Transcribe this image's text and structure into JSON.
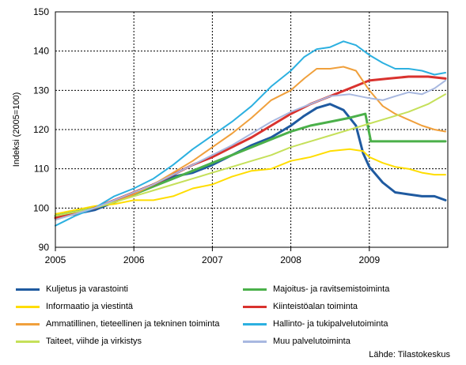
{
  "chart_data": {
    "type": "line",
    "title": "",
    "xlabel": "",
    "ylabel": "Indeksi (2005=100)",
    "xlim": [
      2005,
      2010
    ],
    "ylim": [
      90,
      150
    ],
    "x_ticks": [
      "2005",
      "2006",
      "2007",
      "2008",
      "2009"
    ],
    "y_ticks": [
      "90",
      "100",
      "110",
      "120",
      "130",
      "140",
      "150"
    ],
    "grid": true,
    "legend_position": "bottom",
    "source": "Lähde: Tilastokeskus",
    "series": [
      {
        "name": "Kuljetus ja varastointi",
        "color": "#1f5aa0",
        "points": [
          [
            2005.0,
            97.5
          ],
          [
            2005.25,
            98.5
          ],
          [
            2005.5,
            99.5
          ],
          [
            2005.75,
            101.5
          ],
          [
            2006.0,
            104.0
          ],
          [
            2006.25,
            106.0
          ],
          [
            2006.5,
            108.0
          ],
          [
            2006.75,
            109.0
          ],
          [
            2007.0,
            111.0
          ],
          [
            2007.25,
            113.5
          ],
          [
            2007.5,
            116.0
          ],
          [
            2007.75,
            118.0
          ],
          [
            2008.0,
            121.0
          ],
          [
            2008.17,
            123.5
          ],
          [
            2008.33,
            125.5
          ],
          [
            2008.5,
            126.5
          ],
          [
            2008.67,
            125.0
          ],
          [
            2008.83,
            121.0
          ],
          [
            2008.92,
            114.0
          ],
          [
            2009.0,
            110.5
          ],
          [
            2009.17,
            106.5
          ],
          [
            2009.33,
            104.0
          ],
          [
            2009.5,
            103.5
          ],
          [
            2009.67,
            103.0
          ],
          [
            2009.83,
            103.0
          ],
          [
            2009.97,
            102.0
          ]
        ]
      },
      {
        "name": "Majoitus- ja ravitsemistoiminta",
        "color": "#4bb04a",
        "points": [
          [
            2005.0,
            98.0
          ],
          [
            2005.25,
            99.0
          ],
          [
            2005.5,
            100.0
          ],
          [
            2005.75,
            101.5
          ],
          [
            2006.0,
            103.5
          ],
          [
            2006.25,
            105.5
          ],
          [
            2006.5,
            107.5
          ],
          [
            2006.75,
            109.5
          ],
          [
            2007.0,
            111.5
          ],
          [
            2007.25,
            113.5
          ],
          [
            2007.5,
            115.5
          ],
          [
            2007.75,
            117.5
          ],
          [
            2008.0,
            119.5
          ],
          [
            2008.25,
            121.0
          ],
          [
            2008.5,
            122.0
          ],
          [
            2008.75,
            123.0
          ],
          [
            2008.95,
            124.0
          ],
          [
            2009.02,
            117.0
          ],
          [
            2009.25,
            117.0
          ],
          [
            2009.5,
            117.0
          ],
          [
            2009.75,
            117.0
          ],
          [
            2009.97,
            117.0
          ]
        ]
      },
      {
        "name": "Informaatio ja viestintä",
        "color": "#ffdd00",
        "points": [
          [
            2005.0,
            98.5
          ],
          [
            2005.25,
            99.5
          ],
          [
            2005.5,
            100.5
          ],
          [
            2005.75,
            101.0
          ],
          [
            2006.0,
            102.0
          ],
          [
            2006.25,
            102.0
          ],
          [
            2006.5,
            103.0
          ],
          [
            2006.75,
            105.0
          ],
          [
            2007.0,
            106.0
          ],
          [
            2007.25,
            108.0
          ],
          [
            2007.5,
            109.5
          ],
          [
            2007.75,
            110.0
          ],
          [
            2008.0,
            112.0
          ],
          [
            2008.25,
            113.0
          ],
          [
            2008.5,
            114.5
          ],
          [
            2008.75,
            115.0
          ],
          [
            2008.92,
            114.5
          ],
          [
            2009.0,
            113.0
          ],
          [
            2009.17,
            111.5
          ],
          [
            2009.33,
            110.5
          ],
          [
            2009.5,
            110.0
          ],
          [
            2009.67,
            109.0
          ],
          [
            2009.83,
            108.5
          ],
          [
            2009.97,
            108.5
          ]
        ]
      },
      {
        "name": "Kiinteistöalan toiminta",
        "color": "#d9322e",
        "points": [
          [
            2005.0,
            97.5
          ],
          [
            2005.25,
            98.5
          ],
          [
            2005.5,
            100.0
          ],
          [
            2005.75,
            102.0
          ],
          [
            2006.0,
            104.0
          ],
          [
            2006.25,
            106.0
          ],
          [
            2006.5,
            108.5
          ],
          [
            2006.75,
            111.0
          ],
          [
            2007.0,
            113.0
          ],
          [
            2007.25,
            115.5
          ],
          [
            2007.5,
            118.0
          ],
          [
            2007.75,
            121.0
          ],
          [
            2008.0,
            124.0
          ],
          [
            2008.25,
            126.5
          ],
          [
            2008.5,
            128.5
          ],
          [
            2008.75,
            130.5
          ],
          [
            2009.0,
            132.5
          ],
          [
            2009.25,
            133.0
          ],
          [
            2009.5,
            133.5
          ],
          [
            2009.75,
            133.5
          ],
          [
            2009.97,
            133.0
          ]
        ]
      },
      {
        "name": "Ammatillinen, tieteellinen ja tekninen toiminta",
        "color": "#f0a03c",
        "points": [
          [
            2005.0,
            97.0
          ],
          [
            2005.25,
            98.5
          ],
          [
            2005.5,
            100.0
          ],
          [
            2005.75,
            101.5
          ],
          [
            2006.0,
            103.5
          ],
          [
            2006.25,
            106.0
          ],
          [
            2006.5,
            109.0
          ],
          [
            2006.75,
            112.0
          ],
          [
            2007.0,
            115.5
          ],
          [
            2007.25,
            119.0
          ],
          [
            2007.5,
            123.0
          ],
          [
            2007.75,
            127.5
          ],
          [
            2008.0,
            130.0
          ],
          [
            2008.17,
            133.0
          ],
          [
            2008.33,
            135.5
          ],
          [
            2008.5,
            135.5
          ],
          [
            2008.67,
            136.0
          ],
          [
            2008.83,
            135.0
          ],
          [
            2009.0,
            130.0
          ],
          [
            2009.17,
            126.0
          ],
          [
            2009.33,
            124.0
          ],
          [
            2009.5,
            122.5
          ],
          [
            2009.67,
            121.0
          ],
          [
            2009.83,
            120.0
          ],
          [
            2009.97,
            119.5
          ]
        ]
      },
      {
        "name": "Hallinto- ja tukipalvelutoiminta",
        "color": "#2cb0e0",
        "points": [
          [
            2005.0,
            95.5
          ],
          [
            2005.25,
            98.0
          ],
          [
            2005.5,
            100.0
          ],
          [
            2005.75,
            103.0
          ],
          [
            2006.0,
            105.0
          ],
          [
            2006.25,
            107.5
          ],
          [
            2006.5,
            111.0
          ],
          [
            2006.75,
            115.0
          ],
          [
            2007.0,
            118.5
          ],
          [
            2007.25,
            122.0
          ],
          [
            2007.5,
            126.0
          ],
          [
            2007.75,
            131.0
          ],
          [
            2008.0,
            135.0
          ],
          [
            2008.17,
            138.5
          ],
          [
            2008.33,
            140.5
          ],
          [
            2008.5,
            141.0
          ],
          [
            2008.67,
            142.5
          ],
          [
            2008.83,
            141.5
          ],
          [
            2009.0,
            139.0
          ],
          [
            2009.17,
            137.0
          ],
          [
            2009.33,
            135.5
          ],
          [
            2009.5,
            135.5
          ],
          [
            2009.67,
            135.0
          ],
          [
            2009.83,
            134.0
          ],
          [
            2009.97,
            134.5
          ]
        ]
      },
      {
        "name": "Taiteet, viihde ja virkistys",
        "color": "#c5e05a",
        "points": [
          [
            2005.0,
            98.0
          ],
          [
            2005.25,
            99.0
          ],
          [
            2005.5,
            100.0
          ],
          [
            2005.75,
            101.5
          ],
          [
            2006.0,
            103.0
          ],
          [
            2006.25,
            104.5
          ],
          [
            2006.5,
            106.0
          ],
          [
            2006.75,
            107.5
          ],
          [
            2007.0,
            109.0
          ],
          [
            2007.25,
            110.5
          ],
          [
            2007.5,
            112.0
          ],
          [
            2007.75,
            113.5
          ],
          [
            2008.0,
            115.5
          ],
          [
            2008.25,
            117.0
          ],
          [
            2008.5,
            118.5
          ],
          [
            2008.75,
            120.0
          ],
          [
            2009.0,
            121.5
          ],
          [
            2009.25,
            123.0
          ],
          [
            2009.5,
            124.5
          ],
          [
            2009.75,
            126.5
          ],
          [
            2009.97,
            129.0
          ]
        ]
      },
      {
        "name": "Muu palvelutoiminta",
        "color": "#a8b8e0",
        "points": [
          [
            2005.0,
            97.0
          ],
          [
            2005.25,
            98.5
          ],
          [
            2005.5,
            100.0
          ],
          [
            2005.75,
            102.0
          ],
          [
            2006.0,
            104.0
          ],
          [
            2006.25,
            106.0
          ],
          [
            2006.5,
            108.5
          ],
          [
            2006.75,
            111.0
          ],
          [
            2007.0,
            113.5
          ],
          [
            2007.25,
            116.0
          ],
          [
            2007.5,
            119.0
          ],
          [
            2007.75,
            122.0
          ],
          [
            2008.0,
            124.5
          ],
          [
            2008.25,
            126.5
          ],
          [
            2008.5,
            128.5
          ],
          [
            2008.75,
            129.0
          ],
          [
            2009.0,
            128.0
          ],
          [
            2009.17,
            127.5
          ],
          [
            2009.33,
            128.5
          ],
          [
            2009.5,
            129.5
          ],
          [
            2009.67,
            129.0
          ],
          [
            2009.83,
            130.5
          ],
          [
            2009.97,
            132.5
          ]
        ]
      }
    ]
  }
}
